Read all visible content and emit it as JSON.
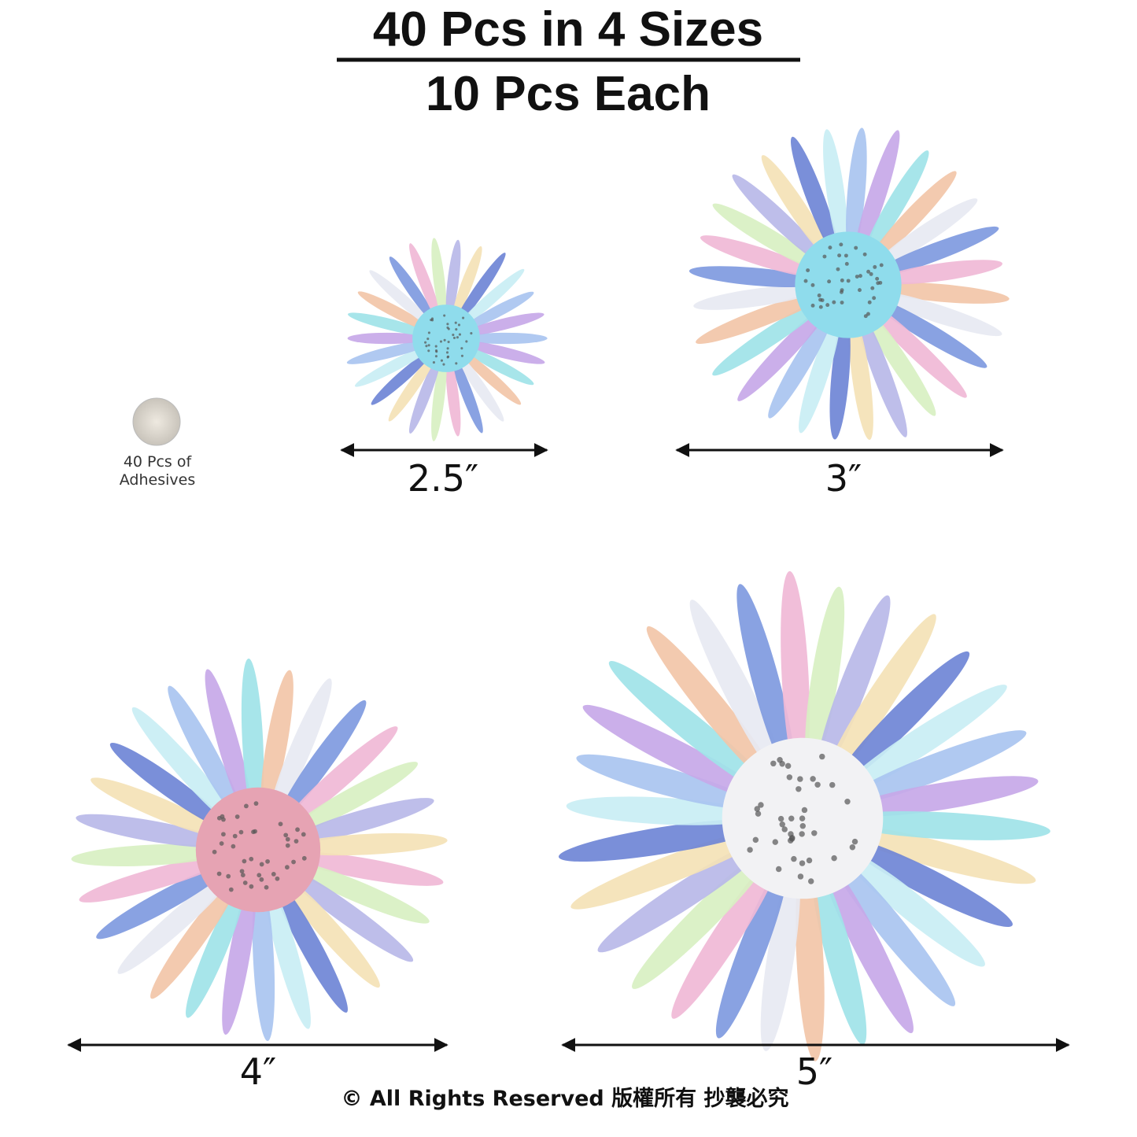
{
  "header": {
    "title": "40 Pcs in 4 Sizes",
    "subtitle": "10 Pcs Each"
  },
  "adhesive": {
    "line1": "40 Pcs of",
    "line2": "Adhesives"
  },
  "items": [
    {
      "size": "2.5″"
    },
    {
      "size": "3″"
    },
    {
      "size": "4″"
    },
    {
      "size": "5″"
    }
  ],
  "footer": {
    "copyright": "© All Rights Reserved 版權所有  抄襲必究"
  }
}
